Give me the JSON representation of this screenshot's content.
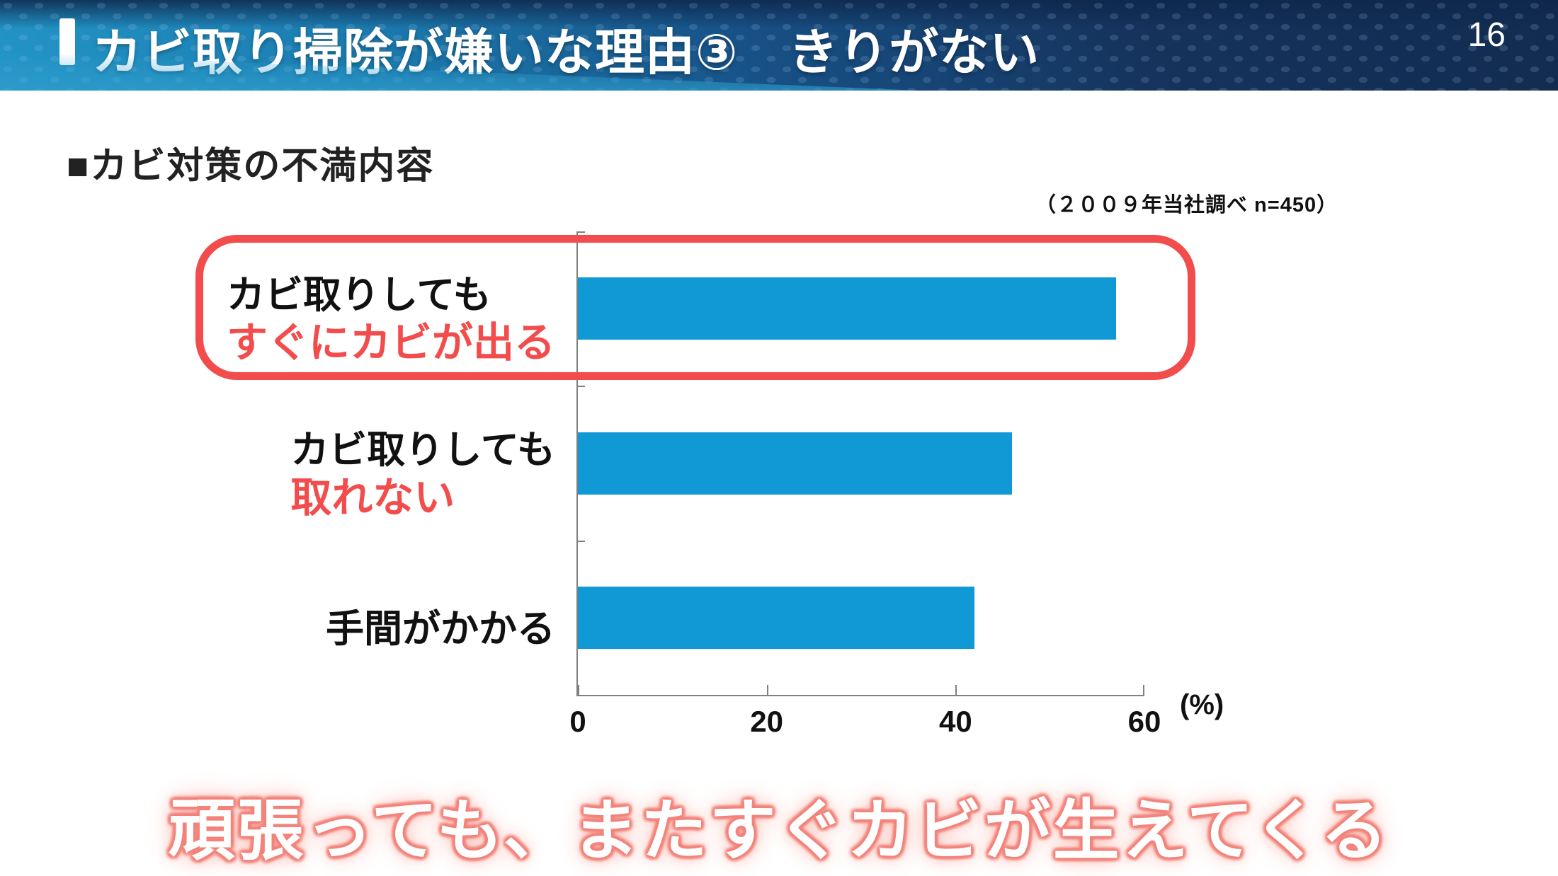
{
  "page": {
    "number": "16"
  },
  "header": {
    "title": "カビ取り掃除が嫌いな理由③　きりがない"
  },
  "section": {
    "heading": "■カビ対策の不満内容"
  },
  "survey_note": "（２００９年当社調べ n=450）",
  "footer": {
    "message": "頑張っても、またすぐカビが生えてくる"
  },
  "colors": {
    "bar_blue": "#1199D6",
    "accent_red": "#F24C4C",
    "axis_gray": "#808080",
    "header_navy": "#122B50",
    "header_blue": "#2395C7",
    "glow_pink": "#F2837B"
  },
  "chart_data": {
    "type": "bar",
    "orientation": "horizontal",
    "title": "カビ対策の不満内容",
    "categories": [
      {
        "label_line1": "カビ取りしても",
        "label_line2": "すぐにカビが出る",
        "emphasis_line2": true,
        "highlighted": true
      },
      {
        "label_line1": "カビ取りしても",
        "label_line2": "取れない",
        "emphasis_line2": true,
        "highlighted": false
      },
      {
        "label_line1": "手間がかかる",
        "label_line2": "",
        "emphasis_line2": false,
        "highlighted": false
      }
    ],
    "values": [
      57,
      46,
      42
    ],
    "xlim": [
      0,
      60
    ],
    "x_ticks": [
      0,
      20,
      40,
      60
    ],
    "unit_label": "(%)",
    "grid": false,
    "legend": "none"
  }
}
